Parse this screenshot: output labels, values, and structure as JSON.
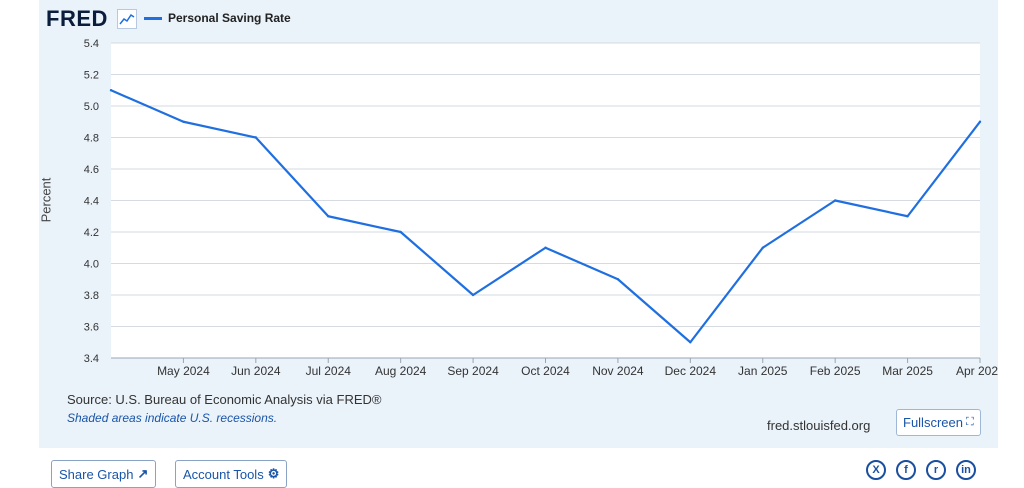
{
  "header": {
    "logo_text": "FRED",
    "logo_icon": "line-graph-icon"
  },
  "legend": {
    "label": "Personal Saving Rate",
    "color": "#1f6fe0"
  },
  "chart_data": {
    "type": "line",
    "title": "",
    "xlabel": "",
    "ylabel": "Percent",
    "ylim": [
      3.4,
      5.4
    ],
    "yticks": [
      "5.4",
      "5.2",
      "5.0",
      "4.8",
      "4.6",
      "4.4",
      "4.2",
      "4.0",
      "3.8",
      "3.6",
      "3.4"
    ],
    "grid": true,
    "x_tick_labels": [
      "May 2024",
      "Jun 2024",
      "Jul 2024",
      "Aug 2024",
      "Sep 2024",
      "Oct 2024",
      "Nov 2024",
      "Dec 2024",
      "Jan 2025",
      "Feb 2025",
      "Mar 2025",
      "Apr 202"
    ],
    "x": [
      "2024-04",
      "2024-05",
      "2024-06",
      "2024-07",
      "2024-08",
      "2024-09",
      "2024-10",
      "2024-11",
      "2024-12",
      "2025-01",
      "2025-02",
      "2025-03",
      "2025-04"
    ],
    "series": [
      {
        "name": "Personal Saving Rate",
        "values": [
          5.1,
          4.9,
          4.8,
          4.3,
          4.2,
          3.8,
          4.1,
          3.9,
          3.5,
          4.1,
          4.4,
          4.3,
          4.9
        ]
      }
    ]
  },
  "footer": {
    "source": "Source: U.S. Bureau of Economic Analysis via FRED®",
    "note": "Shaded areas indicate U.S. recessions.",
    "site": "fred.stlouisfed.org",
    "fullscreen_label": "Fullscreen",
    "fullscreen_icon": "expand-icon"
  },
  "actions": {
    "share_label": "Share Graph",
    "share_icon": "share-icon",
    "account_label": "Account Tools",
    "account_icon": "user-settings-icon"
  },
  "social": [
    {
      "icon": "x-twitter-icon",
      "glyph": "X"
    },
    {
      "icon": "facebook-icon",
      "glyph": "f"
    },
    {
      "icon": "reddit-icon",
      "glyph": "r"
    },
    {
      "icon": "linkedin-icon",
      "glyph": "in"
    }
  ]
}
